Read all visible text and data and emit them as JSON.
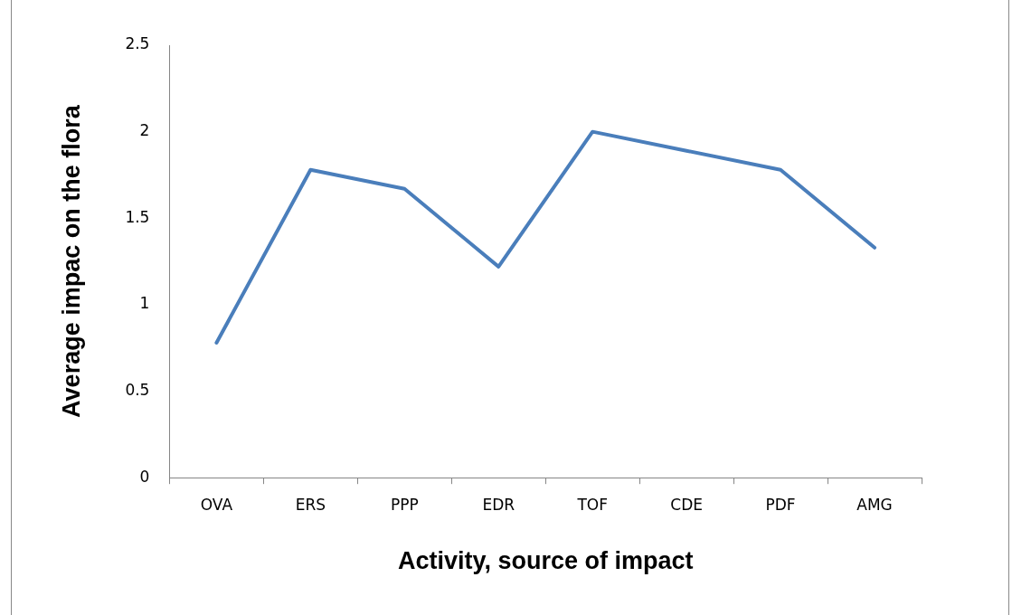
{
  "chart_data": {
    "type": "line",
    "xlabel": "Activity, source of impact",
    "ylabel": "Average impac on the flora",
    "categories": [
      "OVA",
      "ERS",
      "PPP",
      "EDR",
      "TOF",
      "CDE",
      "PDF",
      "AMG"
    ],
    "series": [
      {
        "color": "#4a7ebb",
        "values": [
          0.78,
          1.78,
          1.67,
          1.22,
          2.0,
          1.89,
          1.78,
          1.33
        ]
      }
    ],
    "ylim": [
      0,
      2.5
    ],
    "yticks": [
      0,
      0.5,
      1,
      1.5,
      2,
      2.5
    ],
    "grid": false,
    "legend": false,
    "marker": "none"
  }
}
